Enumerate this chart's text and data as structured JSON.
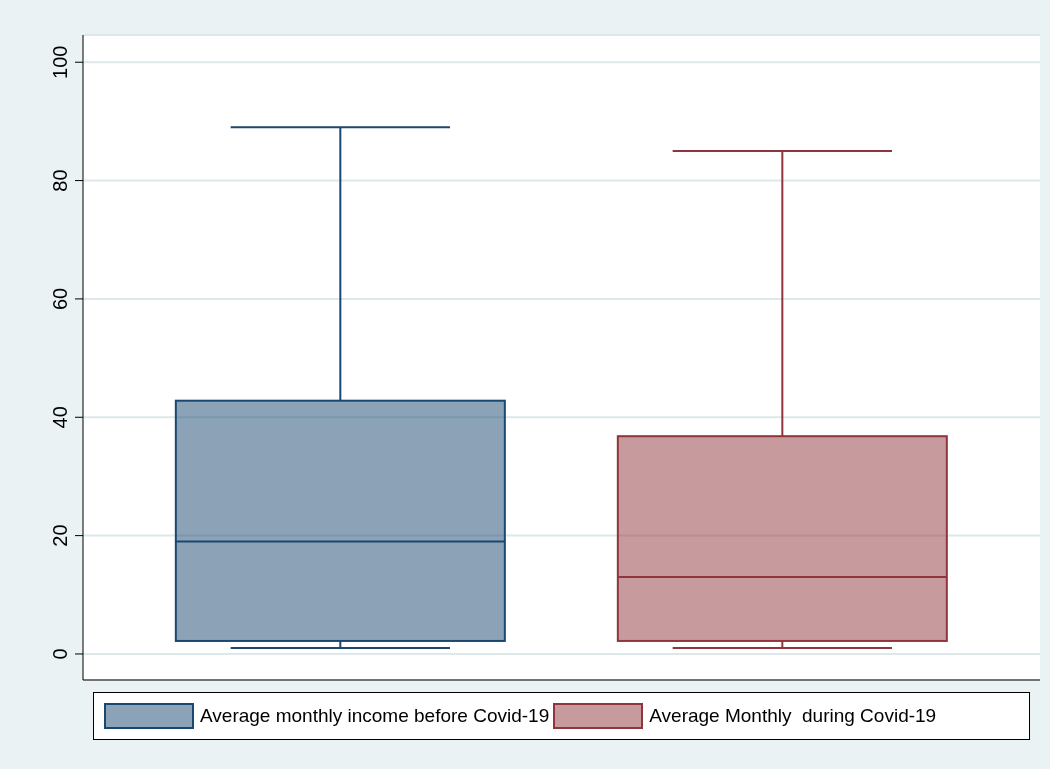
{
  "chart_data": {
    "type": "box",
    "categories": [
      null
    ],
    "series": [
      {
        "name": "Average monthly income before Covid-19",
        "color": "#1a476f",
        "boxes": [
          {
            "low": 1,
            "q1": 2.2,
            "median": 19,
            "q3": 42.8,
            "high": 89
          }
        ]
      },
      {
        "name": "Average Monthly  during Covid-19",
        "color": "#90353b",
        "boxes": [
          {
            "low": 1,
            "q1": 2.2,
            "median": 13,
            "q3": 36.8,
            "high": 85
          }
        ]
      }
    ],
    "ylim": [
      -4.4,
      104.6
    ],
    "yticks": [
      0,
      20,
      40,
      60,
      80,
      100
    ],
    "grid": "y",
    "legend": "bottom",
    "tick_labels": "y"
  }
}
